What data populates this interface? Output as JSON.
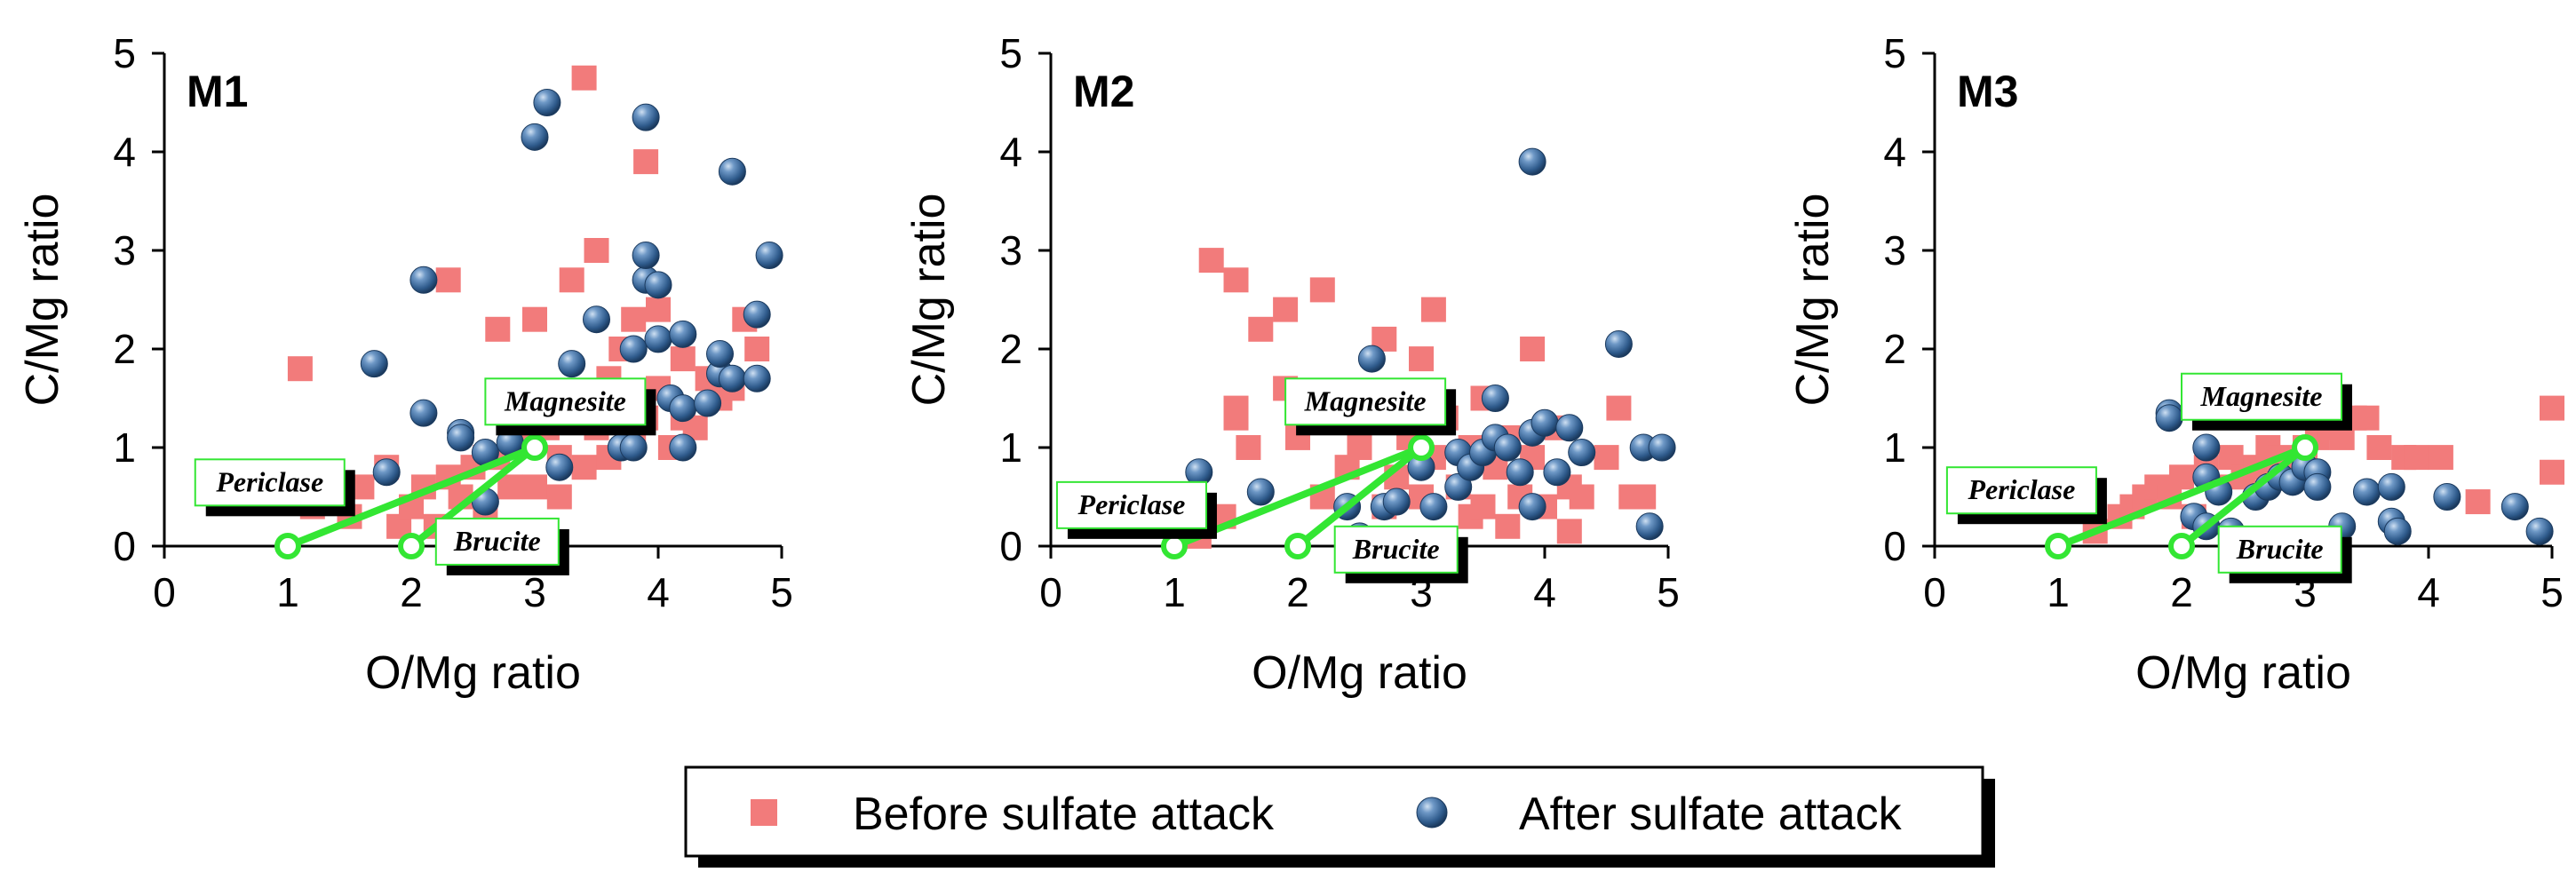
{
  "chart_data": [
    {
      "type": "scatter",
      "title": "M1",
      "xlabel": "O/Mg ratio",
      "ylabel": "C/Mg ratio",
      "xlim": [
        0,
        5
      ],
      "ylim": [
        0,
        5
      ],
      "xticks": [
        "0",
        "1",
        "2",
        "3",
        "4",
        "5"
      ],
      "yticks": [
        "0",
        "1",
        "2",
        "3",
        "4",
        "5"
      ],
      "series": [
        {
          "name": "Before sulfate attack",
          "marker": "square",
          "color": "#f27b7b",
          "points": [
            [
              1.1,
              1.8
            ],
            [
              1.2,
              0.4
            ],
            [
              1.3,
              0.5
            ],
            [
              1.5,
              0.3
            ],
            [
              1.6,
              0.6
            ],
            [
              1.8,
              0.8
            ],
            [
              1.9,
              0.2
            ],
            [
              2.0,
              0.4
            ],
            [
              2.1,
              0.6
            ],
            [
              2.2,
              0.2
            ],
            [
              2.3,
              0.7
            ],
            [
              2.3,
              2.7
            ],
            [
              2.4,
              0.5
            ],
            [
              2.5,
              0.8
            ],
            [
              2.6,
              0.4
            ],
            [
              2.7,
              0.9
            ],
            [
              2.7,
              2.2
            ],
            [
              2.8,
              0.6
            ],
            [
              2.9,
              1.1
            ],
            [
              3.0,
              2.3
            ],
            [
              3.0,
              0.6
            ],
            [
              3.1,
              1.2
            ],
            [
              3.2,
              0.9
            ],
            [
              3.3,
              2.7
            ],
            [
              3.3,
              1.4
            ],
            [
              3.4,
              0.8
            ],
            [
              3.4,
              4.75
            ],
            [
              3.5,
              3.0
            ],
            [
              3.5,
              1.2
            ],
            [
              3.6,
              0.9
            ],
            [
              3.6,
              1.7
            ],
            [
              3.7,
              1.4
            ],
            [
              3.7,
              2.0
            ],
            [
              3.8,
              1.1
            ],
            [
              3.8,
              2.3
            ],
            [
              3.9,
              3.9
            ],
            [
              3.9,
              1.3
            ],
            [
              4.0,
              1.6
            ],
            [
              4.0,
              2.4
            ],
            [
              4.1,
              1.0
            ],
            [
              4.2,
              1.9
            ],
            [
              4.2,
              1.3
            ],
            [
              4.3,
              1.2
            ],
            [
              4.4,
              1.7
            ],
            [
              4.5,
              1.5
            ],
            [
              4.6,
              1.6
            ],
            [
              4.7,
              2.3
            ],
            [
              4.8,
              2.0
            ],
            [
              3.2,
              0.5
            ],
            [
              2.6,
              0.9
            ]
          ]
        },
        {
          "name": "After sulfate attack",
          "marker": "sphere",
          "color": "#2f5b8c",
          "points": [
            [
              1.8,
              0.75
            ],
            [
              1.7,
              1.85
            ],
            [
              2.1,
              1.35
            ],
            [
              2.1,
              2.7
            ],
            [
              2.4,
              1.15
            ],
            [
              2.4,
              1.1
            ],
            [
              2.6,
              0.95
            ],
            [
              2.6,
              0.45
            ],
            [
              2.8,
              1.05
            ],
            [
              3.0,
              4.15
            ],
            [
              3.1,
              4.5
            ],
            [
              3.2,
              0.8
            ],
            [
              3.3,
              1.85
            ],
            [
              3.4,
              1.45
            ],
            [
              3.5,
              2.3
            ],
            [
              3.7,
              1.0
            ],
            [
              3.8,
              1.0
            ],
            [
              3.8,
              2.0
            ],
            [
              3.9,
              2.7
            ],
            [
              3.9,
              4.35
            ],
            [
              3.9,
              2.95
            ],
            [
              4.0,
              2.65
            ],
            [
              4.0,
              2.1
            ],
            [
              4.1,
              1.5
            ],
            [
              4.2,
              2.15
            ],
            [
              4.2,
              1.0
            ],
            [
              4.2,
              1.4
            ],
            [
              4.4,
              1.45
            ],
            [
              4.5,
              1.75
            ],
            [
              4.5,
              1.95
            ],
            [
              4.6,
              1.7
            ],
            [
              4.6,
              3.8
            ],
            [
              4.8,
              1.7
            ],
            [
              4.8,
              2.35
            ],
            [
              4.9,
              2.95
            ]
          ]
        }
      ],
      "annotations": [
        "Periclase",
        "Brucite",
        "Magnesite"
      ]
    },
    {
      "type": "scatter",
      "title": "M2",
      "xlabel": "O/Mg ratio",
      "ylabel": "C/Mg ratio",
      "xlim": [
        0,
        5
      ],
      "ylim": [
        0,
        5
      ],
      "xticks": [
        "0",
        "1",
        "2",
        "3",
        "4",
        "5"
      ],
      "yticks": [
        "0",
        "1",
        "2",
        "3",
        "4",
        "5"
      ],
      "series": [
        {
          "name": "Before sulfate attack",
          "marker": "square",
          "color": "#f27b7b",
          "points": [
            [
              1.3,
              2.9
            ],
            [
              1.5,
              2.7
            ],
            [
              1.5,
              1.4
            ],
            [
              1.5,
              1.3
            ],
            [
              1.6,
              1.0
            ],
            [
              1.7,
              2.2
            ],
            [
              1.9,
              1.6
            ],
            [
              1.9,
              2.4
            ],
            [
              2.0,
              1.1
            ],
            [
              2.2,
              2.6
            ],
            [
              2.2,
              0.5
            ],
            [
              2.4,
              0.8
            ],
            [
              2.5,
              1.0
            ],
            [
              2.6,
              1.3
            ],
            [
              2.7,
              0.4
            ],
            [
              2.7,
              2.1
            ],
            [
              2.8,
              0.7
            ],
            [
              2.9,
              1.1
            ],
            [
              3.0,
              1.9
            ],
            [
              3.0,
              0.5
            ],
            [
              3.1,
              2.4
            ],
            [
              3.1,
              0.9
            ],
            [
              3.2,
              1.3
            ],
            [
              3.3,
              0.6
            ],
            [
              3.4,
              0.3
            ],
            [
              3.4,
              1.0
            ],
            [
              3.5,
              0.4
            ],
            [
              3.5,
              1.5
            ],
            [
              3.6,
              0.8
            ],
            [
              3.7,
              0.2
            ],
            [
              3.7,
              1.1
            ],
            [
              3.8,
              0.5
            ],
            [
              3.9,
              2.0
            ],
            [
              3.9,
              0.9
            ],
            [
              4.0,
              0.4
            ],
            [
              4.1,
              1.2
            ],
            [
              4.2,
              0.15
            ],
            [
              4.2,
              0.6
            ],
            [
              4.3,
              0.5
            ],
            [
              4.5,
              0.9
            ],
            [
              4.6,
              1.4
            ],
            [
              4.7,
              0.5
            ],
            [
              4.8,
              0.5
            ],
            [
              1.4,
              0.3
            ],
            [
              1.2,
              0.1
            ]
          ]
        },
        {
          "name": "After sulfate attack",
          "marker": "sphere",
          "color": "#2f5b8c",
          "points": [
            [
              1.2,
              0.75
            ],
            [
              1.7,
              0.55
            ],
            [
              2.5,
              0.1
            ],
            [
              2.4,
              0.4
            ],
            [
              2.6,
              1.9
            ],
            [
              2.7,
              0.4
            ],
            [
              2.8,
              0.45
            ],
            [
              3.0,
              0.8
            ],
            [
              3.1,
              0.4
            ],
            [
              3.3,
              0.95
            ],
            [
              3.3,
              0.6
            ],
            [
              3.4,
              0.8
            ],
            [
              3.5,
              0.95
            ],
            [
              3.6,
              1.5
            ],
            [
              3.6,
              1.1
            ],
            [
              3.7,
              1.0
            ],
            [
              3.8,
              0.75
            ],
            [
              3.9,
              0.4
            ],
            [
              3.9,
              3.9
            ],
            [
              3.9,
              1.15
            ],
            [
              4.0,
              1.25
            ],
            [
              4.1,
              0.75
            ],
            [
              4.2,
              1.2
            ],
            [
              4.3,
              0.95
            ],
            [
              4.6,
              2.05
            ],
            [
              4.8,
              1.0
            ],
            [
              4.85,
              0.2
            ],
            [
              4.95,
              1.0
            ]
          ]
        }
      ],
      "annotations": [
        "Periclase",
        "Brucite",
        "Magnesite"
      ]
    },
    {
      "type": "scatter",
      "title": "M3",
      "xlabel": "O/Mg ratio",
      "ylabel": "C/Mg ratio",
      "xlim": [
        0,
        5
      ],
      "ylim": [
        0,
        5
      ],
      "xticks": [
        "0",
        "1",
        "2",
        "3",
        "4",
        "5"
      ],
      "yticks": [
        "0",
        "1",
        "2",
        "3",
        "4",
        "5"
      ],
      "series": [
        {
          "name": "Before sulfate attack",
          "marker": "square",
          "color": "#f27b7b",
          "points": [
            [
              1.3,
              0.15
            ],
            [
              1.5,
              0.3
            ],
            [
              1.6,
              0.4
            ],
            [
              1.7,
              0.5
            ],
            [
              1.8,
              0.6
            ],
            [
              1.9,
              0.5
            ],
            [
              2.0,
              0.7
            ],
            [
              2.1,
              0.3
            ],
            [
              2.2,
              0.8
            ],
            [
              2.3,
              0.6
            ],
            [
              2.4,
              0.9
            ],
            [
              2.5,
              0.7
            ],
            [
              2.6,
              0.8
            ],
            [
              2.7,
              1.0
            ],
            [
              2.8,
              0.9
            ],
            [
              3.0,
              1.0
            ],
            [
              3.1,
              1.1
            ],
            [
              3.2,
              1.2
            ],
            [
              3.3,
              1.1
            ],
            [
              3.4,
              1.3
            ],
            [
              3.5,
              1.3
            ],
            [
              3.6,
              1.0
            ],
            [
              3.8,
              0.9
            ],
            [
              3.9,
              0.9
            ],
            [
              4.1,
              0.9
            ],
            [
              4.4,
              0.45
            ],
            [
              5.0,
              1.4
            ],
            [
              5.0,
              0.75
            ]
          ]
        },
        {
          "name": "After sulfate attack",
          "marker": "sphere",
          "color": "#2f5b8c",
          "points": [
            [
              1.9,
              1.35
            ],
            [
              1.9,
              1.3
            ],
            [
              2.2,
              1.0
            ],
            [
              2.2,
              0.7
            ],
            [
              2.3,
              0.55
            ],
            [
              2.1,
              0.3
            ],
            [
              2.2,
              0.2
            ],
            [
              2.4,
              0.15
            ],
            [
              2.6,
              0.5
            ],
            [
              2.7,
              0.6
            ],
            [
              2.8,
              0.7
            ],
            [
              2.9,
              0.65
            ],
            [
              3.0,
              0.8
            ],
            [
              3.1,
              0.75
            ],
            [
              3.1,
              0.6
            ],
            [
              3.3,
              0.2
            ],
            [
              3.5,
              0.55
            ],
            [
              3.7,
              0.6
            ],
            [
              3.7,
              0.25
            ],
            [
              3.75,
              0.15
            ],
            [
              4.15,
              0.5
            ],
            [
              4.7,
              0.4
            ],
            [
              4.9,
              0.15
            ]
          ]
        }
      ],
      "annotations": [
        "Periclase",
        "Brucite",
        "Magnesite"
      ]
    }
  ],
  "legend": {
    "items": [
      {
        "label": "Before sulfate attack",
        "marker": "square",
        "color": "#f27b7b"
      },
      {
        "label": "After sulfate attack",
        "marker": "sphere",
        "color": "#2f5b8c"
      }
    ]
  },
  "reference_line_color": "#33e633"
}
